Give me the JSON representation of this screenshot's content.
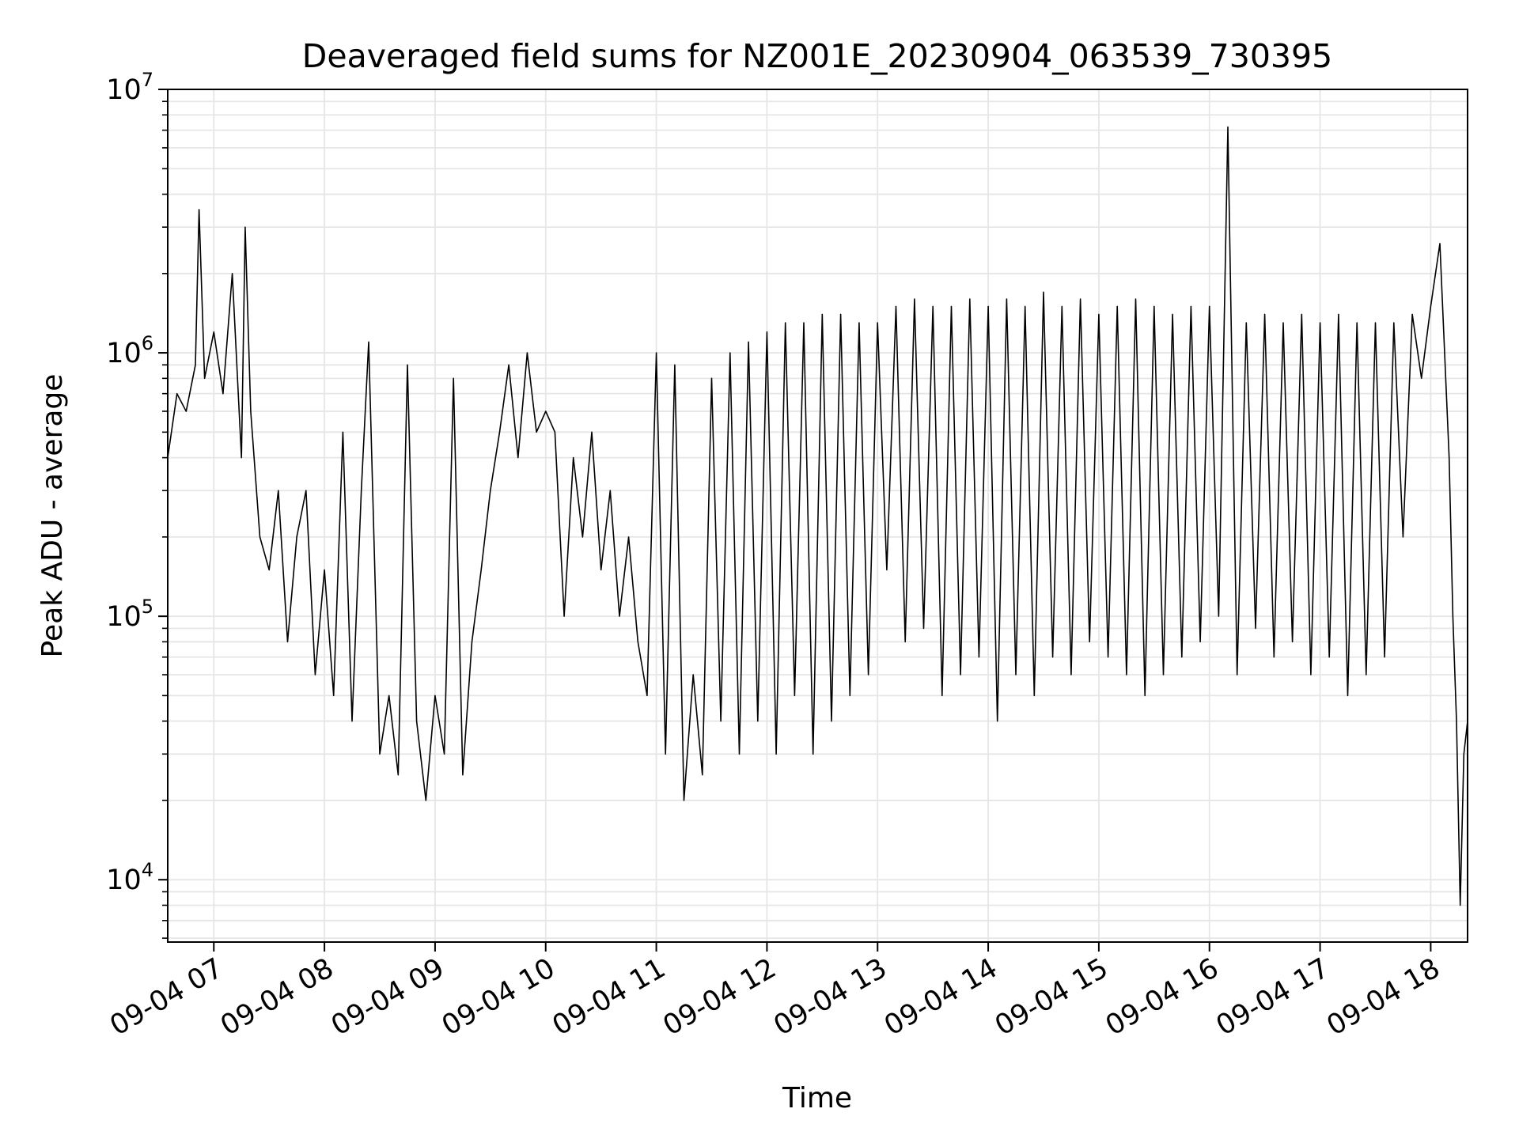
{
  "chart_data": {
    "type": "line",
    "title": "Deaveraged field sums for NZ001E_20230904_063539_730395",
    "xlabel": "Time",
    "ylabel": "Peak ADU - average",
    "yscale": "log",
    "ylim": [
      5800,
      10000000
    ],
    "xlim": [
      "2023-09-04 06:35",
      "2023-09-04 18:20"
    ],
    "grid": true,
    "legend": "none",
    "line_color": "#000000",
    "grid_color": "#e6e6e6",
    "x_ticks": [
      "09-04 07",
      "09-04 08",
      "09-04 09",
      "09-04 10",
      "09-04 11",
      "09-04 12",
      "09-04 13",
      "09-04 14",
      "09-04 15",
      "09-04 16",
      "09-04 17",
      "09-04 18"
    ],
    "y_ticks": [
      {
        "value": 10000,
        "base": "10",
        "exp": "4"
      },
      {
        "value": 100000,
        "base": "10",
        "exp": "5"
      },
      {
        "value": 1000000,
        "base": "10",
        "exp": "6"
      },
      {
        "value": 10000000,
        "base": "10",
        "exp": "7"
      }
    ],
    "series": [
      {
        "x": [
          "2023-09-04 06:35",
          "2023-09-04 06:40",
          "2023-09-04 06:45",
          "2023-09-04 06:50",
          "2023-09-04 06:52",
          "2023-09-04 06:55",
          "2023-09-04 07:00",
          "2023-09-04 07:05",
          "2023-09-04 07:10",
          "2023-09-04 07:15",
          "2023-09-04 07:17",
          "2023-09-04 07:20",
          "2023-09-04 07:25",
          "2023-09-04 07:30",
          "2023-09-04 07:35",
          "2023-09-04 07:40",
          "2023-09-04 07:45",
          "2023-09-04 07:50",
          "2023-09-04 07:55",
          "2023-09-04 08:00",
          "2023-09-04 08:05",
          "2023-09-04 08:10",
          "2023-09-04 08:15",
          "2023-09-04 08:20",
          "2023-09-04 08:24",
          "2023-09-04 08:30",
          "2023-09-04 08:35",
          "2023-09-04 08:40",
          "2023-09-04 08:45",
          "2023-09-04 08:50",
          "2023-09-04 08:55",
          "2023-09-04 09:00",
          "2023-09-04 09:05",
          "2023-09-04 09:10",
          "2023-09-04 09:15",
          "2023-09-04 09:20",
          "2023-09-04 09:25",
          "2023-09-04 09:30",
          "2023-09-04 09:35",
          "2023-09-04 09:40",
          "2023-09-04 09:45",
          "2023-09-04 09:50",
          "2023-09-04 09:55",
          "2023-09-04 10:00",
          "2023-09-04 10:05",
          "2023-09-04 10:10",
          "2023-09-04 10:15",
          "2023-09-04 10:20",
          "2023-09-04 10:25",
          "2023-09-04 10:30",
          "2023-09-04 10:35",
          "2023-09-04 10:40",
          "2023-09-04 10:45",
          "2023-09-04 10:50",
          "2023-09-04 10:55",
          "2023-09-04 11:00",
          "2023-09-04 11:05",
          "2023-09-04 11:10",
          "2023-09-04 11:15",
          "2023-09-04 11:20",
          "2023-09-04 11:25",
          "2023-09-04 11:30",
          "2023-09-04 11:35",
          "2023-09-04 11:40",
          "2023-09-04 11:45",
          "2023-09-04 11:50",
          "2023-09-04 11:55",
          "2023-09-04 12:00",
          "2023-09-04 12:05",
          "2023-09-04 12:10",
          "2023-09-04 12:15",
          "2023-09-04 12:20",
          "2023-09-04 12:25",
          "2023-09-04 12:30",
          "2023-09-04 12:35",
          "2023-09-04 12:40",
          "2023-09-04 12:45",
          "2023-09-04 12:50",
          "2023-09-04 12:55",
          "2023-09-04 13:00",
          "2023-09-04 13:05",
          "2023-09-04 13:10",
          "2023-09-04 13:15",
          "2023-09-04 13:20",
          "2023-09-04 13:25",
          "2023-09-04 13:30",
          "2023-09-04 13:35",
          "2023-09-04 13:40",
          "2023-09-04 13:45",
          "2023-09-04 13:50",
          "2023-09-04 13:55",
          "2023-09-04 14:00",
          "2023-09-04 14:05",
          "2023-09-04 14:10",
          "2023-09-04 14:15",
          "2023-09-04 14:20",
          "2023-09-04 14:25",
          "2023-09-04 14:30",
          "2023-09-04 14:35",
          "2023-09-04 14:40",
          "2023-09-04 14:45",
          "2023-09-04 14:50",
          "2023-09-04 14:55",
          "2023-09-04 15:00",
          "2023-09-04 15:05",
          "2023-09-04 15:10",
          "2023-09-04 15:15",
          "2023-09-04 15:20",
          "2023-09-04 15:25",
          "2023-09-04 15:30",
          "2023-09-04 15:35",
          "2023-09-04 15:40",
          "2023-09-04 15:45",
          "2023-09-04 15:50",
          "2023-09-04 15:55",
          "2023-09-04 16:00",
          "2023-09-04 16:05",
          "2023-09-04 16:10",
          "2023-09-04 16:15",
          "2023-09-04 16:20",
          "2023-09-04 16:25",
          "2023-09-04 16:30",
          "2023-09-04 16:35",
          "2023-09-04 16:40",
          "2023-09-04 16:45",
          "2023-09-04 16:50",
          "2023-09-04 16:55",
          "2023-09-04 17:00",
          "2023-09-04 17:05",
          "2023-09-04 17:10",
          "2023-09-04 17:15",
          "2023-09-04 17:20",
          "2023-09-04 17:25",
          "2023-09-04 17:30",
          "2023-09-04 17:35",
          "2023-09-04 17:40",
          "2023-09-04 17:45",
          "2023-09-04 17:50",
          "2023-09-04 17:55",
          "2023-09-04 18:00",
          "2023-09-04 18:05",
          "2023-09-04 18:10",
          "2023-09-04 18:12",
          "2023-09-04 18:14",
          "2023-09-04 18:16",
          "2023-09-04 18:18",
          "2023-09-04 18:20"
        ],
        "y": [
          400000,
          700000,
          600000,
          900000,
          3500000,
          800000,
          1200000,
          700000,
          2000000,
          400000,
          3000000,
          600000,
          200000,
          150000,
          300000,
          80000,
          200000,
          300000,
          60000,
          150000,
          50000,
          500000,
          40000,
          300000,
          1100000,
          30000,
          50000,
          25000,
          900000,
          40000,
          20000,
          50000,
          30000,
          800000,
          25000,
          80000,
          150000,
          300000,
          500000,
          900000,
          400000,
          1000000,
          500000,
          600000,
          500000,
          100000,
          400000,
          200000,
          500000,
          150000,
          300000,
          100000,
          200000,
          80000,
          50000,
          1000000,
          30000,
          900000,
          20000,
          60000,
          25000,
          800000,
          40000,
          1000000,
          30000,
          1100000,
          40000,
          1200000,
          30000,
          1300000,
          50000,
          1300000,
          30000,
          1400000,
          40000,
          1400000,
          50000,
          1300000,
          60000,
          1300000,
          150000,
          1500000,
          80000,
          1600000,
          90000,
          1500000,
          50000,
          1500000,
          60000,
          1600000,
          70000,
          1500000,
          40000,
          1600000,
          60000,
          1500000,
          50000,
          1700000,
          70000,
          1500000,
          60000,
          1600000,
          80000,
          1400000,
          70000,
          1500000,
          60000,
          1600000,
          50000,
          1500000,
          60000,
          1400000,
          70000,
          1500000,
          80000,
          1500000,
          100000,
          7200000,
          60000,
          1300000,
          90000,
          1400000,
          70000,
          1300000,
          80000,
          1400000,
          60000,
          1300000,
          70000,
          1400000,
          50000,
          1300000,
          60000,
          1300000,
          70000,
          1300000,
          200000,
          1400000,
          800000,
          1500000,
          2600000,
          400000,
          100000,
          40000,
          8000,
          30000,
          40000
        ]
      }
    ]
  }
}
